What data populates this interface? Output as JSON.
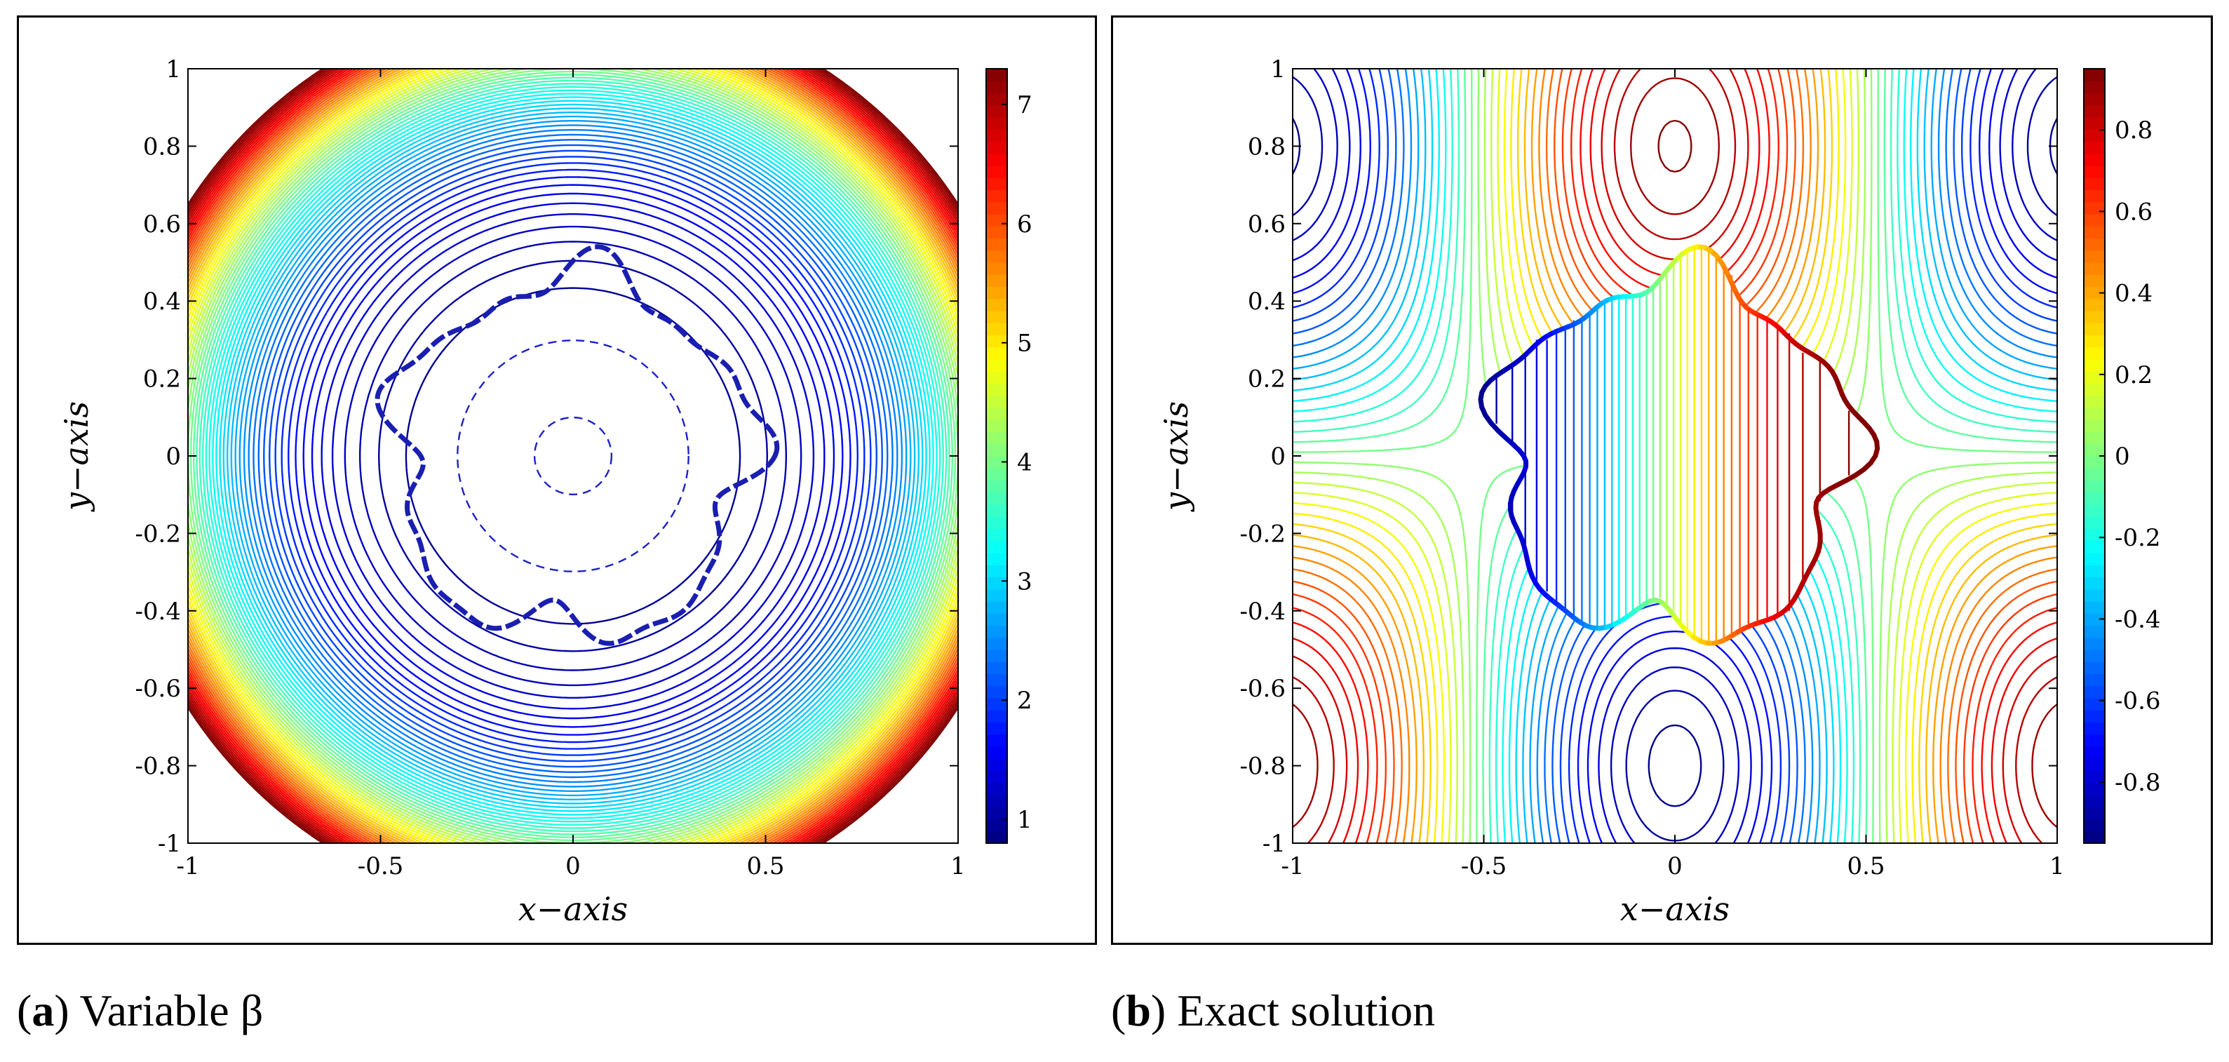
{
  "captions": [
    {
      "tag": "a",
      "text": "Variable β"
    },
    {
      "tag": "b",
      "text": "Exact solution"
    }
  ],
  "chart_data": [
    {
      "type": "contour",
      "xlabel": "x−axis",
      "ylabel": "y−axis",
      "xlim": [
        -1,
        1
      ],
      "ylim": [
        -1,
        1
      ],
      "x_ticks": [
        "-1",
        "-0.5",
        "0",
        "0.5",
        "1"
      ],
      "y_ticks": [
        "1",
        "0.8",
        "0.6",
        "0.4",
        "0.2",
        "0",
        "-0.2",
        "-0.4",
        "-0.6",
        "-0.8",
        "-1"
      ],
      "colorbar": {
        "min": 0.8,
        "max": 7.3,
        "ticks": [
          "7",
          "6",
          "5",
          "4",
          "3",
          "2",
          "1"
        ]
      },
      "line_style": "dashed",
      "colormap": "jet",
      "features": {
        "interface": "irregular star-shaped curve, radius about 0.4-0.55",
        "inner_contours": "circles of radius 0.1 and 0.3"
      }
    },
    {
      "type": "contour",
      "xlabel": "x−axis",
      "ylabel": "y−axis",
      "xlim": [
        -1,
        1
      ],
      "ylim": [
        -1,
        1
      ],
      "x_ticks": [
        "-1",
        "-0.5",
        "0",
        "0.5",
        "1"
      ],
      "y_ticks": [
        "1",
        "0.8",
        "0.6",
        "0.4",
        "0.2",
        "0",
        "-0.2",
        "-0.4",
        "-0.6",
        "-0.8",
        "-1"
      ],
      "colorbar": {
        "min": -0.95,
        "max": 0.95,
        "ticks": [
          "0.8",
          "0.6",
          "0.4",
          "0.2",
          "0",
          "-0.2",
          "-0.4",
          "-0.6",
          "-0.8"
        ]
      },
      "line_style": "dashed",
      "colormap": "jet",
      "features": {
        "interface": "irregular star-shaped curve",
        "extrema": "maximum near (0, 0.8), minimum near (0, -0.8)"
      }
    }
  ]
}
